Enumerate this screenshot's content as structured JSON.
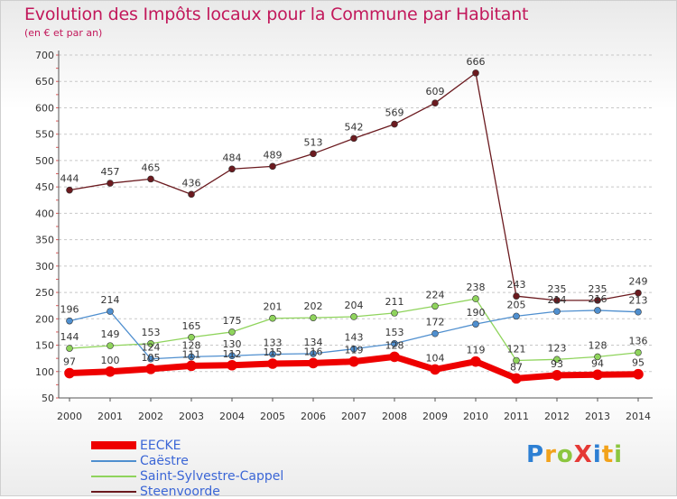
{
  "title": "Evolution des Impôts locaux pour la Commune par Habitant",
  "subtitle": "(en € et par an)",
  "logo": {
    "text": "ProXiti",
    "colors": [
      "#2d7fd3",
      "#f2a21b",
      "#8cc63f",
      "#e53935",
      "#2d7fd3",
      "#f2a21b",
      "#8cc63f"
    ]
  },
  "colors": {
    "title": "#c2185b",
    "legend_text": "#3b66d6",
    "grid": "#c8c8c8"
  },
  "chart_data": {
    "type": "line",
    "title": "Evolution des Impôts locaux pour la Commune par Habitant",
    "subtitle": "(en € et par an)",
    "x": [
      2000,
      2001,
      2002,
      2003,
      2004,
      2005,
      2006,
      2007,
      2008,
      2009,
      2010,
      2011,
      2012,
      2013,
      2014
    ],
    "ylim": [
      50,
      700
    ],
    "yticks": [
      50,
      100,
      150,
      200,
      250,
      300,
      350,
      400,
      450,
      500,
      550,
      600,
      650,
      700
    ],
    "grid": "horizontal dashed",
    "legend_position": "bottom-left",
    "series": [
      {
        "name": "EECKE",
        "color": "#ee0000",
        "line_width": 7,
        "values": [
          97,
          100,
          105,
          111,
          112,
          115,
          116,
          119,
          128,
          104,
          119,
          87,
          93,
          94,
          95
        ],
        "labels": [
          "97",
          "100",
          "105",
          "111",
          "112",
          "115",
          "116",
          "119",
          "128",
          "104",
          "119",
          "87",
          "93",
          "94",
          "95"
        ]
      },
      {
        "name": "Caëstre",
        "color": "#4f8fcf",
        "line_width": 1.3,
        "values": [
          196,
          214,
          124,
          128,
          130,
          133,
          134,
          143,
          153,
          172,
          190,
          205,
          214,
          216,
          213
        ],
        "labels": [
          "196",
          "214",
          "124",
          "128",
          "130",
          "133",
          "134",
          "143",
          "153",
          "172",
          "190",
          "205",
          "214",
          "216",
          "213"
        ]
      },
      {
        "name": "Saint-Sylvestre-Cappel",
        "color": "#8fd45c",
        "line_width": 1.3,
        "values": [
          144,
          149,
          153,
          165,
          175,
          201,
          202,
          204,
          211,
          224,
          238,
          121,
          123,
          128,
          136
        ],
        "labels": [
          "144",
          "149",
          "153",
          "165",
          "175",
          "201",
          "202",
          "204",
          "211",
          "224",
          "238",
          "121",
          "123",
          "128",
          "136"
        ]
      },
      {
        "name": "Steenvoorde",
        "color": "#6b1a1f",
        "line_width": 1.3,
        "values": [
          444,
          457,
          465,
          436,
          484,
          489,
          513,
          542,
          569,
          609,
          666,
          243,
          235,
          235,
          249
        ],
        "labels": [
          "444",
          "457",
          "465",
          "436",
          "484",
          "489",
          "513",
          "542",
          "569",
          "609",
          "666",
          "243",
          "235",
          "235",
          "249"
        ]
      }
    ]
  }
}
